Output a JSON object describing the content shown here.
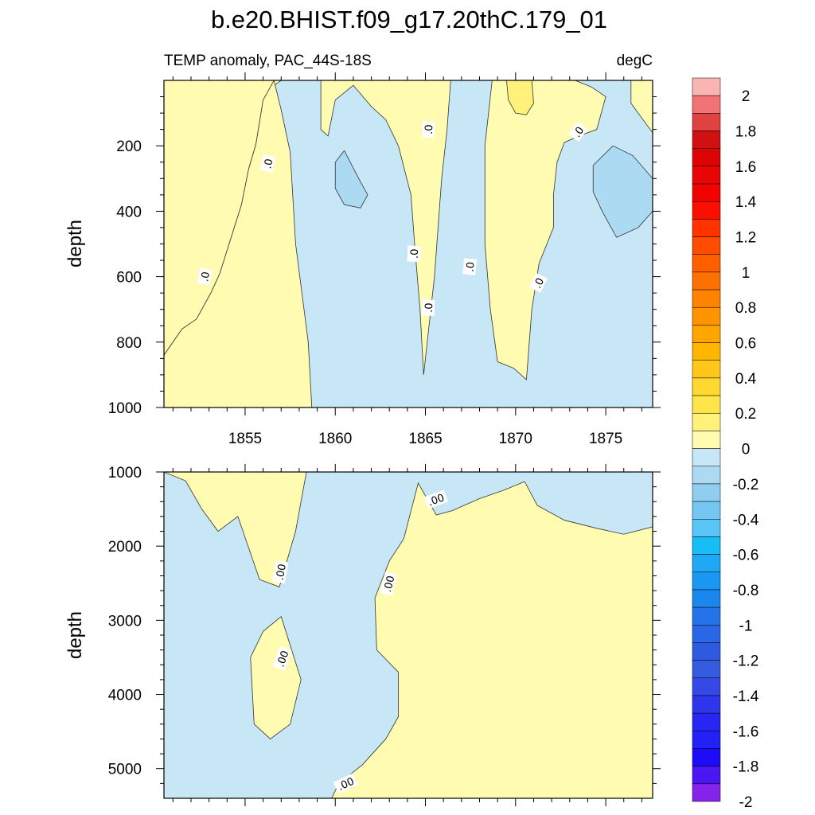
{
  "chart_data": [
    {
      "type": "heatmap",
      "title": "b.e20.BHIST.f09_g17.20thC.179_01",
      "subtitle_left": "TEMP anomaly, PAC_44S-18S",
      "subtitle_right": "degC",
      "xlabel": "",
      "ylabel": "depth",
      "xlim": [
        1850.5,
        1877.6
      ],
      "ylim": [
        0,
        1000
      ],
      "y_reversed": true,
      "x_ticks": [
        "1855",
        "1860",
        "1865",
        "1870",
        "1875"
      ],
      "y_ticks": [
        "200",
        "400",
        "600",
        "800",
        "1000"
      ],
      "contour_labels": [
        ".0",
        ".0",
        ".0",
        ".0",
        ".0",
        ".0",
        ".0",
        ".0"
      ],
      "background_level": "0 to -0.2",
      "positive_regions": [
        {
          "level": "0 to 0.2",
          "points": [
            [
              1850.5,
              840
            ],
            [
              1851.5,
              760
            ],
            [
              1852.3,
              730
            ],
            [
              1853.1,
              650
            ],
            [
              1853.6,
              590
            ],
            [
              1854.8,
              380
            ],
            [
              1855.2,
              270
            ],
            [
              1855.6,
              195
            ],
            [
              1856,
              60
            ],
            [
              1856.5,
              20
            ],
            [
              1857,
              0
            ],
            [
              1850.5,
              0
            ]
          ]
        },
        {
          "level": "0 to 0.2",
          "points": [
            [
              1856.6,
              0
            ],
            [
              1857,
              90
            ],
            [
              1857.5,
              220
            ],
            [
              1857.8,
              500
            ],
            [
              1858.5,
              800
            ],
            [
              1858.7,
              1000
            ],
            [
              1850.5,
              1000
            ],
            [
              1850.5,
              840
            ],
            [
              1851.5,
              760
            ],
            [
              1852.3,
              730
            ],
            [
              1853.1,
              650
            ],
            [
              1853.6,
              590
            ],
            [
              1854.8,
              380
            ],
            [
              1855.2,
              270
            ],
            [
              1855.6,
              195
            ],
            [
              1856,
              60
            ]
          ]
        },
        {
          "level": "0 to 0.2",
          "points": [
            [
              1859.2,
              0
            ],
            [
              1859.2,
              150
            ],
            [
              1859.6,
              170
            ],
            [
              1860,
              60
            ],
            [
              1861,
              15
            ],
            [
              1862,
              80
            ],
            [
              1862.8,
              120
            ],
            [
              1863.5,
              200
            ],
            [
              1864.2,
              350
            ],
            [
              1864.4,
              500
            ],
            [
              1864.7,
              700
            ],
            [
              1864.9,
              900
            ],
            [
              1865.5,
              600
            ],
            [
              1865.9,
              300
            ],
            [
              1866.2,
              150
            ],
            [
              1866.4,
              0
            ]
          ]
        },
        {
          "level": "0 to 0.2",
          "points": [
            [
              1868.7,
              0
            ],
            [
              1868.3,
              200
            ],
            [
              1868.3,
              500
            ],
            [
              1868.6,
              700
            ],
            [
              1869,
              860
            ],
            [
              1869.9,
              880
            ],
            [
              1870.6,
              915
            ],
            [
              1870.9,
              700
            ],
            [
              1871.3,
              560
            ],
            [
              1872.1,
              450
            ],
            [
              1872.1,
              350
            ],
            [
              1872.3,
              250
            ],
            [
              1872.7,
              190
            ],
            [
              1873.5,
              170
            ],
            [
              1874.5,
              150
            ],
            [
              1875,
              50
            ],
            [
              1874.2,
              20
            ],
            [
              1873.3,
              0
            ]
          ]
        },
        {
          "level": "0 to 0.2",
          "points": [
            [
              1876.4,
              0
            ],
            [
              1876.4,
              70
            ],
            [
              1877.6,
              160
            ],
            [
              1877.6,
              0
            ]
          ]
        },
        {
          "level": "0.2 to 0.4",
          "points": [
            [
              1869.5,
              0
            ],
            [
              1869.6,
              60
            ],
            [
              1870,
              100
            ],
            [
              1870.6,
              105
            ],
            [
              1871,
              70
            ],
            [
              1870.9,
              0
            ]
          ]
        }
      ],
      "negative_patches": [
        {
          "level": "-0.2 to -0.4",
          "points": [
            [
              1860,
              250
            ],
            [
              1860.5,
              215
            ],
            [
              1861.3,
              300
            ],
            [
              1861.8,
              350
            ],
            [
              1861.4,
              390
            ],
            [
              1860.5,
              380
            ],
            [
              1860,
              330
            ]
          ]
        },
        {
          "level": "-0.2 to -0.4",
          "points": [
            [
              1874.3,
              260
            ],
            [
              1875.4,
              200
            ],
            [
              1876.5,
              230
            ],
            [
              1877.6,
              300
            ],
            [
              1877.6,
              400
            ],
            [
              1876.8,
              450
            ],
            [
              1875.6,
              480
            ],
            [
              1874.8,
              400
            ],
            [
              1874.3,
              340
            ]
          ]
        }
      ]
    },
    {
      "type": "heatmap",
      "xlabel": "",
      "ylabel": "depth",
      "xlim": [
        1850.5,
        1877.6
      ],
      "ylim": [
        1000,
        5400
      ],
      "y_reversed": true,
      "x_ticks": [],
      "y_ticks": [
        "1000",
        "2000",
        "3000",
        "4000",
        "5000"
      ],
      "contour_labels": [
        ".00",
        ".00",
        ".00",
        ".00",
        ".00"
      ],
      "background_level": "0 to -0.2",
      "positive_regions": [
        {
          "level": "0 to 0.2",
          "points": [
            [
              1850.5,
              1000
            ],
            [
              1851.7,
              1120
            ],
            [
              1852.6,
              1500
            ],
            [
              1853.5,
              1800
            ],
            [
              1854.6,
              1600
            ],
            [
              1855.8,
              2450
            ],
            [
              1856.9,
              2550
            ],
            [
              1857.8,
              1800
            ],
            [
              1858.4,
              1000
            ]
          ]
        },
        {
          "level": "0 to 0.2",
          "points": [
            [
              1856,
              3150
            ],
            [
              1857,
              2950
            ],
            [
              1858.1,
              3800
            ],
            [
              1857.5,
              4400
            ],
            [
              1856.4,
              4600
            ],
            [
              1855.5,
              4400
            ],
            [
              1855.3,
              3500
            ]
          ]
        },
        {
          "level": "0 to 0.2",
          "points": [
            [
              1864.6,
              1150
            ],
            [
              1865.6,
              1580
            ],
            [
              1866.5,
              1520
            ],
            [
              1868,
              1360
            ],
            [
              1869.3,
              1250
            ],
            [
              1870.5,
              1130
            ],
            [
              1871.2,
              1450
            ],
            [
              1872.7,
              1650
            ],
            [
              1874.5,
              1760
            ],
            [
              1876,
              1840
            ],
            [
              1877.6,
              1740
            ],
            [
              1877.6,
              5400
            ],
            [
              1859.8,
              5400
            ],
            [
              1860.2,
              5200
            ],
            [
              1861.5,
              4950
            ],
            [
              1862.8,
              4600
            ],
            [
              1863.5,
              4300
            ],
            [
              1863.5,
              3700
            ],
            [
              1862.3,
              3400
            ],
            [
              1862.2,
              2700
            ],
            [
              1863,
              2200
            ],
            [
              1863.8,
              1900
            ]
          ]
        }
      ],
      "negative_patches": []
    },
    {
      "type": "colorbar",
      "tick_labels": [
        "2",
        "1.8",
        "1.6",
        "1.4",
        "1.2",
        "1",
        "0.8",
        "0.6",
        "0.4",
        "0.2",
        "0",
        "-0.2",
        "-0.4",
        "-0.6",
        "-0.8",
        "-1",
        "-1.2",
        "-1.4",
        "-1.6",
        "-1.8",
        "-2"
      ],
      "colors": [
        "#fbb4b4",
        "#f27373",
        "#e04242",
        "#d11111",
        "#de0404",
        "#e80505",
        "#f30202",
        "#fd0f00",
        "#ff3300",
        "#ff4d00",
        "#fe6000",
        "#fd7100",
        "#ff8200",
        "#ff9400",
        "#ffa500",
        "#ffb600",
        "#ffc71a",
        "#ffd830",
        "#ffe54a",
        "#fff17a",
        "#fffbb0",
        "#c7e6f6",
        "#acdaf3",
        "#90cdee",
        "#75c6f2",
        "#5ac6f7",
        "#16bef5",
        "#1ea8f5",
        "#1997f2",
        "#1a87ee",
        "#2473e8",
        "#2a67e6",
        "#2d5ae0",
        "#355be0",
        "#3449e7",
        "#2f35ea",
        "#2826f2",
        "#2121f8",
        "#1e0cf8",
        "#4a16f2",
        "#8623ea"
      ]
    }
  ]
}
